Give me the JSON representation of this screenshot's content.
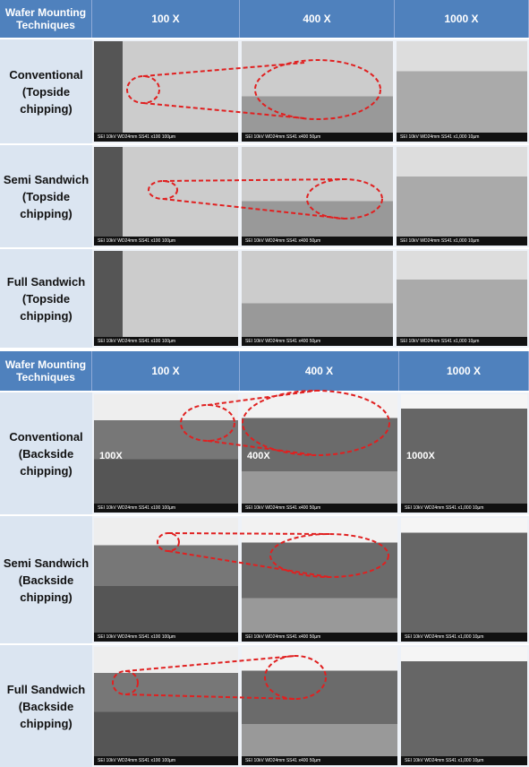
{
  "tables": [
    {
      "header": [
        "Wafer Mounting Techniques",
        "100 X",
        "400 X",
        "1000 X"
      ],
      "rows": [
        {
          "label": [
            "Conventional",
            "(Topside",
            "chipping)"
          ],
          "images": [
            {
              "caption": "SEI 10kV WD24mm SS41 x100 100µm"
            },
            {
              "caption": "SEI 10kV WD24mm SS41 x400 50µm"
            },
            {
              "caption": "SEI 10kV WD24mm SS41 x1,000 10µm"
            }
          ]
        },
        {
          "label": [
            "Semi Sandwich",
            "(Topside",
            "chipping)"
          ],
          "images": [
            {
              "caption": "SEI 10kV WD24mm SS41 x100 100µm"
            },
            {
              "caption": "SEI 10kV WD24mm SS41 x400 50µm"
            },
            {
              "caption": "SEI 10kV WD24mm SS41 x1,000 10µm"
            }
          ]
        },
        {
          "label": [
            "Full Sandwich",
            "(Topside",
            "chipping)"
          ],
          "images": [
            {
              "caption": "SEI 10kV WD24mm SS41 x100 100µm"
            },
            {
              "caption": "SEI 10kV WD24mm SS41 x400 50µm"
            },
            {
              "caption": "SEI 10kV WD24mm SS41 x1,000 10µm"
            }
          ]
        }
      ]
    },
    {
      "header": [
        "Wafer Mounting Techniques",
        "100 X",
        "400 X",
        "1000 X"
      ],
      "rows": [
        {
          "label": [
            "Conventional",
            "(Backside",
            "chipping)"
          ],
          "images": [
            {
              "caption": "SEI 10kV WD24mm SS41 x100 100µm",
              "overlay": "100X"
            },
            {
              "caption": "SEI 10kV WD24mm SS41 x400 50µm",
              "overlay": "400X"
            },
            {
              "caption": "SEI 10kV WD24mm SS41 x1,000 10µm",
              "overlay": "1000X"
            }
          ]
        },
        {
          "label": [
            "Semi Sandwich",
            "(Backside",
            "chipping)"
          ],
          "images": [
            {
              "caption": "SEI 10kV WD24mm SS41 x100 100µm"
            },
            {
              "caption": "SEI 10kV WD24mm SS41 x400 50µm"
            },
            {
              "caption": "SEI 10kV WD24mm SS41 x1,000 10µm"
            }
          ]
        },
        {
          "label": [
            "Full Sandwich",
            "(Backside",
            "chipping)"
          ],
          "images": [
            {
              "caption": "SEI 10kV WD24mm SS41 x100 100µm"
            },
            {
              "caption": "SEI 10kV WD24mm SS41 x400 50µm"
            },
            {
              "caption": "SEI 10kV WD24mm SS41 x1,000 10µm"
            }
          ]
        }
      ]
    }
  ]
}
